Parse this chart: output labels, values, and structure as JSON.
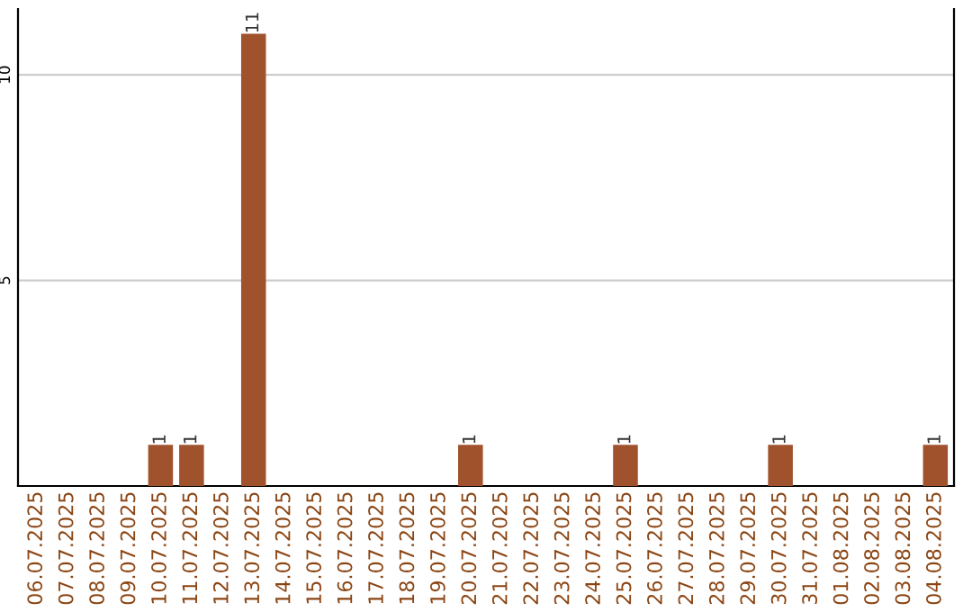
{
  "chart_data": {
    "type": "bar",
    "categories": [
      "06.07.2025",
      "07.07.2025",
      "08.07.2025",
      "09.07.2025",
      "10.07.2025",
      "11.07.2025",
      "12.07.2025",
      "13.07.2025",
      "14.07.2025",
      "15.07.2025",
      "16.07.2025",
      "17.07.2025",
      "18.07.2025",
      "19.07.2025",
      "20.07.2025",
      "21.07.2025",
      "22.07.2025",
      "23.07.2025",
      "24.07.2025",
      "25.07.2025",
      "26.07.2025",
      "27.07.2025",
      "28.07.2025",
      "29.07.2025",
      "30.07.2025",
      "31.07.2025",
      "01.08.2025",
      "02.08.2025",
      "03.08.2025",
      "04.08.2025"
    ],
    "values": [
      0,
      0,
      0,
      0,
      1,
      1,
      0,
      11,
      0,
      0,
      0,
      0,
      0,
      0,
      1,
      0,
      0,
      0,
      0,
      1,
      0,
      0,
      0,
      0,
      1,
      0,
      0,
      0,
      0,
      1
    ],
    "value_labels": [
      null,
      null,
      null,
      null,
      "1",
      "1",
      null,
      "11",
      null,
      null,
      null,
      null,
      null,
      null,
      "1",
      null,
      null,
      null,
      null,
      "1",
      null,
      null,
      null,
      null,
      "1",
      null,
      null,
      null,
      null,
      "1"
    ],
    "color": "#a0522d",
    "ylim": [
      0,
      11.6
    ],
    "yticks": [
      5,
      10
    ],
    "grid": "y"
  }
}
